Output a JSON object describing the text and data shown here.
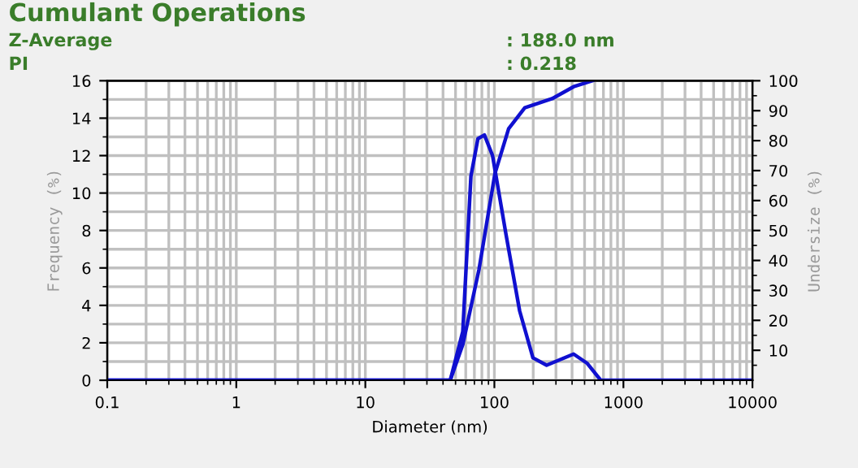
{
  "chart_data": {
    "type": "line",
    "title": "Cumulant Operations",
    "annotations": [
      "Z-Average",
      ": 188.0 nm",
      "PI",
      ": 0.218"
    ],
    "xlabel": "Diameter (nm)",
    "ylabel": "Frequency (%)",
    "y2label": "Undersize (%)",
    "log": "x",
    "series": [
      {
        "name": null,
        "color": "#1010d0",
        "x": [
          0.1,
          45.5,
          56.9,
          65.8,
          74.5,
          83.7,
          96.8,
          123,
          157,
          199,
          254,
          411,
          525,
          667,
          10000
        ],
        "values": [
          0,
          0,
          2.6,
          10.9,
          12.9,
          13.1,
          12.0,
          7.8,
          3.7,
          1.2,
          0.8,
          1.4,
          0.9,
          0,
          0
        ]
      },
      {
        "name": null,
        "color": "#1010d0",
        "axis": "y2",
        "x": [
          0.1,
          45.5,
          57,
          76,
          101,
          129,
          172,
          280,
          411,
          575
        ],
        "values": [
          0,
          0,
          12,
          37,
          69,
          84,
          91,
          94,
          98,
          100
        ]
      }
    ],
    "xlim": [
      0.1,
      10000
    ],
    "xticks": [
      {
        "value": 0.1,
        "label": "0.1"
      },
      {
        "value": 1,
        "label": "1"
      },
      {
        "value": 10,
        "label": "10"
      },
      {
        "value": 100,
        "label": "100"
      },
      {
        "value": 1000,
        "label": "1000"
      },
      {
        "value": 10000,
        "label": "10000"
      },
      {
        "value": 0.2,
        "label": null
      },
      {
        "value": 0.3,
        "label": null
      },
      {
        "value": 0.4,
        "label": null
      },
      {
        "value": 0.5,
        "label": null
      },
      {
        "value": 0.6,
        "label": null
      },
      {
        "value": 0.7,
        "label": null
      },
      {
        "value": 0.8,
        "label": null
      },
      {
        "value": 0.9,
        "label": null
      },
      {
        "value": 2,
        "label": null
      },
      {
        "value": 3,
        "label": null
      },
      {
        "value": 4,
        "label": null
      },
      {
        "value": 5,
        "label": null
      },
      {
        "value": 6,
        "label": null
      },
      {
        "value": 7,
        "label": null
      },
      {
        "value": 8,
        "label": null
      },
      {
        "value": 9,
        "label": null
      },
      {
        "value": 20,
        "label": null
      },
      {
        "value": 30,
        "label": null
      },
      {
        "value": 40,
        "label": null
      },
      {
        "value": 50,
        "label": null
      },
      {
        "value": 60,
        "label": null
      },
      {
        "value": 70,
        "label": null
      },
      {
        "value": 80,
        "label": null
      },
      {
        "value": 90,
        "label": null
      },
      {
        "value": 200,
        "label": null
      },
      {
        "value": 300,
        "label": null
      },
      {
        "value": 400,
        "label": null
      },
      {
        "value": 500,
        "label": null
      },
      {
        "value": 600,
        "label": null
      },
      {
        "value": 700,
        "label": null
      },
      {
        "value": 800,
        "label": null
      },
      {
        "value": 900,
        "label": null
      },
      {
        "value": 2000,
        "label": null
      },
      {
        "value": 3000,
        "label": null
      },
      {
        "value": 4000,
        "label": null
      },
      {
        "value": 5000,
        "label": null
      },
      {
        "value": 6000,
        "label": null
      },
      {
        "value": 7000,
        "label": null
      },
      {
        "value": 8000,
        "label": null
      },
      {
        "value": 9000,
        "label": null
      }
    ],
    "ylim": [
      0,
      16
    ],
    "yticks": [
      0,
      2,
      4,
      6,
      8,
      10,
      12,
      14,
      16,
      {
        "value": 1,
        "label": null
      },
      {
        "value": 3,
        "label": null
      },
      {
        "value": 5,
        "label": null
      },
      {
        "value": 7,
        "label": null
      },
      {
        "value": 9,
        "label": null
      },
      {
        "value": 11,
        "label": null
      },
      {
        "value": 13,
        "label": null
      },
      {
        "value": 15,
        "label": null
      }
    ],
    "y2lim": [
      0,
      100
    ],
    "y2ticks": [
      10,
      20,
      30,
      40,
      50,
      60,
      70,
      80,
      90,
      100,
      {
        "value": 5,
        "label": null
      },
      {
        "value": 15,
        "label": null
      },
      {
        "value": 25,
        "label": null
      },
      {
        "value": 35,
        "label": null
      },
      {
        "value": 45,
        "label": null
      },
      {
        "value": 55,
        "label": null
      },
      {
        "value": 65,
        "label": null
      },
      {
        "value": 75,
        "label": null
      },
      {
        "value": 85,
        "label": null
      },
      {
        "value": 95,
        "label": null
      }
    ],
    "grid": true,
    "legend": false,
    "marker": "none",
    "line_style": "solid"
  }
}
